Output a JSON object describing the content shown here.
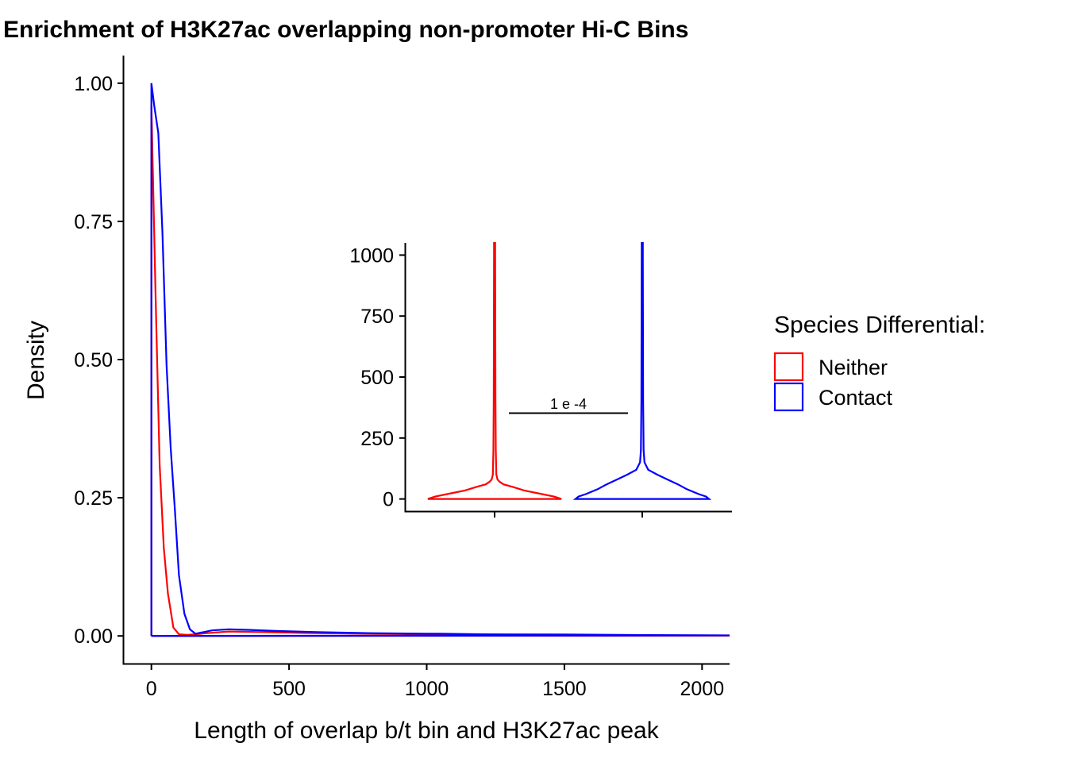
{
  "chart_data": [
    {
      "type": "line",
      "title": "Enrichment of H3K27ac overlapping non-promoter Hi-C Bins",
      "xlabel": "Length of overlap b/t bin and H3K27ac peak",
      "ylabel": "Density",
      "xlim": [
        -100,
        2100
      ],
      "ylim": [
        -0.05,
        1.05
      ],
      "x_ticks": [
        0,
        500,
        1000,
        1500,
        2000
      ],
      "x_tick_labels": [
        "0",
        "500",
        "1000",
        "1500",
        "2000"
      ],
      "y_ticks": [
        0,
        0.25,
        0.5,
        0.75,
        1.0
      ],
      "y_tick_labels": [
        "0.00",
        "0.25",
        "0.50",
        "0.75",
        "1.00"
      ],
      "grid": false,
      "legend": {
        "title": "Species Differential:",
        "position": "right",
        "entries": [
          {
            "label": "Neither",
            "color": "#ff0000"
          },
          {
            "label": "Contact",
            "color": "#0000ff"
          }
        ]
      },
      "series": [
        {
          "name": "Neither",
          "color": "#ff0000",
          "x": [
            0,
            0,
            15,
            30,
            45,
            60,
            80,
            100,
            130,
            160,
            200,
            280,
            400,
            600,
            800,
            1000,
            1200,
            1500,
            1800,
            2100
          ],
          "y": [
            0,
            0.96,
            0.62,
            0.31,
            0.16,
            0.077,
            0.015,
            0.003,
            0.002,
            0.003,
            0.005,
            0.008,
            0.007,
            0.005,
            0.004,
            0.003,
            0.002,
            0.0015,
            0.001,
            0.0005
          ]
        },
        {
          "name": "Contact",
          "color": "#0000ff",
          "x": [
            0,
            0,
            10,
            25,
            40,
            55,
            70,
            85,
            100,
            120,
            140,
            160,
            180,
            220,
            280,
            350,
            450,
            600,
            800,
            1000,
            1050,
            1200,
            1500,
            1800,
            2100
          ],
          "y": [
            0,
            1.0,
            0.96,
            0.91,
            0.73,
            0.49,
            0.34,
            0.23,
            0.11,
            0.04,
            0.012,
            0.004,
            0.006,
            0.01,
            0.012,
            0.011,
            0.009,
            0.007,
            0.005,
            0.004,
            0.004,
            0.003,
            0.0025,
            0.0015,
            0.001
          ]
        }
      ]
    },
    {
      "type": "violin",
      "title": "",
      "xlabel": "",
      "ylabel": "",
      "ylim": [
        -50,
        1050
      ],
      "y_ticks": [
        0,
        250,
        500,
        750,
        1000
      ],
      "y_tick_labels": [
        "0",
        "250",
        "500",
        "750",
        "1000"
      ],
      "categories": [
        "Neither",
        "Contact"
      ],
      "annotation": "1 e -4",
      "annotation_y": 350,
      "series": [
        {
          "name": "Neither",
          "color": "#ff0000",
          "y": [
            0,
            10,
            20,
            35,
            50,
            60,
            70,
            80,
            100,
            200,
            400,
            700,
            1000,
            1050
          ],
          "half_width": [
            0.45,
            0.4,
            0.32,
            0.2,
            0.12,
            0.06,
            0.035,
            0.02,
            0.012,
            0.008,
            0.006,
            0.005,
            0.004,
            0.004
          ]
        },
        {
          "name": "Contact",
          "color": "#0000ff",
          "y": [
            0,
            10,
            20,
            40,
            60,
            80,
            100,
            120,
            150,
            200,
            400,
            700,
            1000,
            1050
          ],
          "half_width": [
            0.45,
            0.43,
            0.38,
            0.3,
            0.24,
            0.17,
            0.1,
            0.04,
            0.015,
            0.009,
            0.006,
            0.005,
            0.004,
            0.004
          ]
        }
      ]
    }
  ]
}
